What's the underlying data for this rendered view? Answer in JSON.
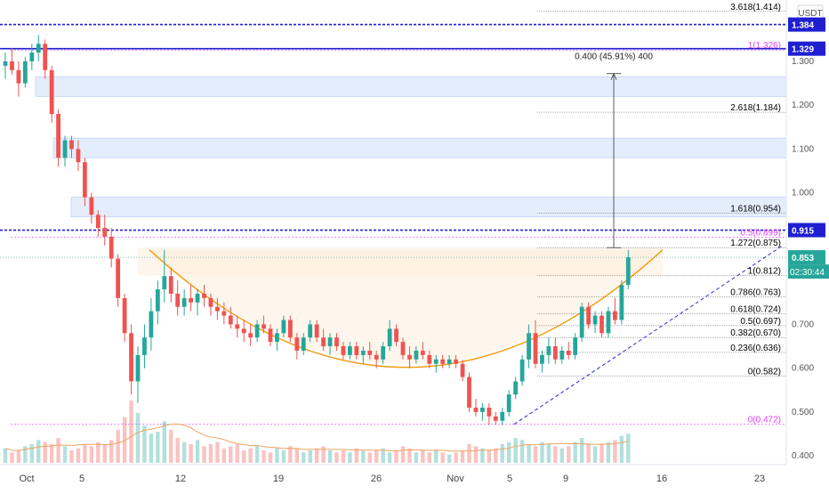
{
  "chart_data": {
    "type": "candlestick",
    "currency_label": "USDT",
    "x_ticks": [
      "Oct",
      "5",
      "12",
      "19",
      "26",
      "Nov",
      "5",
      "9",
      "16",
      "23"
    ],
    "y_ticks": [
      "1.300",
      "1.200",
      "1.100",
      "1.000",
      "0.700",
      "0.600",
      "0.500",
      "0.400"
    ],
    "ylim": [
      0.38,
      1.44
    ],
    "price_tags": [
      {
        "label": "1.384",
        "value": 1.384,
        "color": "#1f1fd1"
      },
      {
        "label": "1.329",
        "value": 1.329,
        "color": "#1f1fd1"
      },
      {
        "label": "0.915",
        "value": 0.915,
        "color": "#1f1fd1"
      },
      {
        "label": "0.853",
        "value": 0.853,
        "color": "#26a69a"
      }
    ],
    "countdown": "02:30:44",
    "fib_right": [
      {
        "label": "3.618(1.414)",
        "value": 1.414,
        "color": "#000000"
      },
      {
        "label": "2.618(1.184)",
        "value": 1.184,
        "color": "#000000"
      },
      {
        "label": "1.618(0.954)",
        "value": 0.954,
        "color": "#000000"
      },
      {
        "label": "1.272(0.875)",
        "value": 0.875,
        "color": "#000000"
      },
      {
        "label": "1(0.812)",
        "value": 0.812,
        "color": "#000000"
      },
      {
        "label": "0.786(0.763)",
        "value": 0.763,
        "color": "#000000"
      },
      {
        "label": "0.618(0.724)",
        "value": 0.724,
        "color": "#000000"
      },
      {
        "label": "0.5(0.697)",
        "value": 0.697,
        "color": "#000000"
      },
      {
        "label": "0.382(0.670)",
        "value": 0.67,
        "color": "#000000"
      },
      {
        "label": "0.236(0.636)",
        "value": 0.636,
        "color": "#000000"
      },
      {
        "label": "0(0.582)",
        "value": 0.582,
        "color": "#000000"
      }
    ],
    "fib_left": [
      {
        "label": "1(1.326)",
        "value": 1.326,
        "color": "#e040fb"
      },
      {
        "label": "0.5(0.899)",
        "value": 0.899,
        "color": "#e040fb"
      },
      {
        "label": "0(0.472)",
        "value": 0.472,
        "color": "#e040fb"
      }
    ],
    "measure_label": "0.400 (45.91%) 400",
    "zones": [
      [
        1.22,
        1.265
      ],
      [
        1.08,
        1.125
      ],
      [
        0.945,
        0.99
      ]
    ],
    "candles": [
      {
        "t": 0,
        "o": 1.29,
        "h": 1.32,
        "l": 1.26,
        "c": 1.3
      },
      {
        "t": 1,
        "o": 1.3,
        "h": 1.33,
        "l": 1.27,
        "c": 1.28
      },
      {
        "t": 2,
        "o": 1.28,
        "h": 1.3,
        "l": 1.22,
        "c": 1.25
      },
      {
        "t": 3,
        "o": 1.25,
        "h": 1.31,
        "l": 1.24,
        "c": 1.3
      },
      {
        "t": 4,
        "o": 1.3,
        "h": 1.34,
        "l": 1.28,
        "c": 1.32
      },
      {
        "t": 5,
        "o": 1.32,
        "h": 1.36,
        "l": 1.3,
        "c": 1.34
      },
      {
        "t": 6,
        "o": 1.34,
        "h": 1.35,
        "l": 1.26,
        "c": 1.28
      },
      {
        "t": 7,
        "o": 1.28,
        "h": 1.29,
        "l": 1.16,
        "c": 1.18
      },
      {
        "t": 8,
        "o": 1.18,
        "h": 1.19,
        "l": 1.06,
        "c": 1.08
      },
      {
        "t": 9,
        "o": 1.08,
        "h": 1.13,
        "l": 1.06,
        "c": 1.12
      },
      {
        "t": 10,
        "o": 1.12,
        "h": 1.13,
        "l": 1.08,
        "c": 1.1
      },
      {
        "t": 11,
        "o": 1.1,
        "h": 1.12,
        "l": 1.05,
        "c": 1.07
      },
      {
        "t": 12,
        "o": 1.07,
        "h": 1.08,
        "l": 0.97,
        "c": 0.99
      },
      {
        "t": 13,
        "o": 0.99,
        "h": 1.0,
        "l": 0.93,
        "c": 0.95
      },
      {
        "t": 14,
        "o": 0.95,
        "h": 0.96,
        "l": 0.9,
        "c": 0.92
      },
      {
        "t": 15,
        "o": 0.92,
        "h": 0.95,
        "l": 0.88,
        "c": 0.9
      },
      {
        "t": 16,
        "o": 0.9,
        "h": 0.92,
        "l": 0.83,
        "c": 0.85
      },
      {
        "t": 17,
        "o": 0.85,
        "h": 0.86,
        "l": 0.74,
        "c": 0.76
      },
      {
        "t": 18,
        "o": 0.76,
        "h": 0.77,
        "l": 0.66,
        "c": 0.68
      },
      {
        "t": 19,
        "o": 0.68,
        "h": 0.7,
        "l": 0.54,
        "c": 0.57
      },
      {
        "t": 20,
        "o": 0.57,
        "h": 0.65,
        "l": 0.52,
        "c": 0.63
      },
      {
        "t": 21,
        "o": 0.63,
        "h": 0.7,
        "l": 0.6,
        "c": 0.67
      },
      {
        "t": 22,
        "o": 0.67,
        "h": 0.76,
        "l": 0.64,
        "c": 0.73
      },
      {
        "t": 23,
        "o": 0.73,
        "h": 0.8,
        "l": 0.7,
        "c": 0.78
      },
      {
        "t": 24,
        "o": 0.78,
        "h": 0.87,
        "l": 0.75,
        "c": 0.81
      },
      {
        "t": 25,
        "o": 0.81,
        "h": 0.83,
        "l": 0.75,
        "c": 0.77
      },
      {
        "t": 26,
        "o": 0.77,
        "h": 0.8,
        "l": 0.72,
        "c": 0.74
      },
      {
        "t": 27,
        "o": 0.74,
        "h": 0.78,
        "l": 0.72,
        "c": 0.76
      },
      {
        "t": 28,
        "o": 0.76,
        "h": 0.79,
        "l": 0.73,
        "c": 0.75
      },
      {
        "t": 29,
        "o": 0.75,
        "h": 0.78,
        "l": 0.72,
        "c": 0.77
      },
      {
        "t": 30,
        "o": 0.77,
        "h": 0.79,
        "l": 0.74,
        "c": 0.76
      },
      {
        "t": 31,
        "o": 0.76,
        "h": 0.77,
        "l": 0.72,
        "c": 0.74
      },
      {
        "t": 32,
        "o": 0.74,
        "h": 0.76,
        "l": 0.71,
        "c": 0.73
      },
      {
        "t": 33,
        "o": 0.73,
        "h": 0.75,
        "l": 0.7,
        "c": 0.72
      },
      {
        "t": 34,
        "o": 0.72,
        "h": 0.74,
        "l": 0.69,
        "c": 0.7
      },
      {
        "t": 35,
        "o": 0.7,
        "h": 0.72,
        "l": 0.67,
        "c": 0.69
      },
      {
        "t": 36,
        "o": 0.69,
        "h": 0.71,
        "l": 0.66,
        "c": 0.68
      },
      {
        "t": 37,
        "o": 0.68,
        "h": 0.7,
        "l": 0.65,
        "c": 0.67
      },
      {
        "t": 38,
        "o": 0.67,
        "h": 0.71,
        "l": 0.66,
        "c": 0.7
      },
      {
        "t": 39,
        "o": 0.7,
        "h": 0.72,
        "l": 0.68,
        "c": 0.69
      },
      {
        "t": 40,
        "o": 0.69,
        "h": 0.7,
        "l": 0.65,
        "c": 0.66
      },
      {
        "t": 41,
        "o": 0.66,
        "h": 0.69,
        "l": 0.64,
        "c": 0.68
      },
      {
        "t": 42,
        "o": 0.68,
        "h": 0.72,
        "l": 0.67,
        "c": 0.71
      },
      {
        "t": 43,
        "o": 0.71,
        "h": 0.72,
        "l": 0.66,
        "c": 0.67
      },
      {
        "t": 44,
        "o": 0.67,
        "h": 0.68,
        "l": 0.62,
        "c": 0.64
      },
      {
        "t": 45,
        "o": 0.64,
        "h": 0.68,
        "l": 0.63,
        "c": 0.67
      },
      {
        "t": 46,
        "o": 0.67,
        "h": 0.71,
        "l": 0.66,
        "c": 0.7
      },
      {
        "t": 47,
        "o": 0.7,
        "h": 0.71,
        "l": 0.66,
        "c": 0.67
      },
      {
        "t": 48,
        "o": 0.67,
        "h": 0.69,
        "l": 0.64,
        "c": 0.65
      },
      {
        "t": 49,
        "o": 0.65,
        "h": 0.68,
        "l": 0.63,
        "c": 0.67
      },
      {
        "t": 50,
        "o": 0.67,
        "h": 0.68,
        "l": 0.64,
        "c": 0.65
      },
      {
        "t": 51,
        "o": 0.65,
        "h": 0.66,
        "l": 0.62,
        "c": 0.63
      },
      {
        "t": 52,
        "o": 0.63,
        "h": 0.66,
        "l": 0.62,
        "c": 0.65
      },
      {
        "t": 53,
        "o": 0.65,
        "h": 0.66,
        "l": 0.62,
        "c": 0.63
      },
      {
        "t": 54,
        "o": 0.63,
        "h": 0.65,
        "l": 0.61,
        "c": 0.64
      },
      {
        "t": 55,
        "o": 0.64,
        "h": 0.66,
        "l": 0.62,
        "c": 0.63
      },
      {
        "t": 56,
        "o": 0.63,
        "h": 0.64,
        "l": 0.6,
        "c": 0.62
      },
      {
        "t": 57,
        "o": 0.62,
        "h": 0.66,
        "l": 0.61,
        "c": 0.65
      },
      {
        "t": 58,
        "o": 0.65,
        "h": 0.71,
        "l": 0.64,
        "c": 0.69
      },
      {
        "t": 59,
        "o": 0.69,
        "h": 0.7,
        "l": 0.65,
        "c": 0.66
      },
      {
        "t": 60,
        "o": 0.66,
        "h": 0.67,
        "l": 0.62,
        "c": 0.63
      },
      {
        "t": 61,
        "o": 0.63,
        "h": 0.65,
        "l": 0.6,
        "c": 0.62
      },
      {
        "t": 62,
        "o": 0.62,
        "h": 0.65,
        "l": 0.61,
        "c": 0.64
      },
      {
        "t": 63,
        "o": 0.64,
        "h": 0.66,
        "l": 0.62,
        "c": 0.63
      },
      {
        "t": 64,
        "o": 0.63,
        "h": 0.64,
        "l": 0.6,
        "c": 0.61
      },
      {
        "t": 65,
        "o": 0.61,
        "h": 0.63,
        "l": 0.59,
        "c": 0.62
      },
      {
        "t": 66,
        "o": 0.62,
        "h": 0.63,
        "l": 0.6,
        "c": 0.61
      },
      {
        "t": 67,
        "o": 0.61,
        "h": 0.63,
        "l": 0.6,
        "c": 0.62
      },
      {
        "t": 68,
        "o": 0.62,
        "h": 0.63,
        "l": 0.6,
        "c": 0.61
      },
      {
        "t": 69,
        "o": 0.61,
        "h": 0.62,
        "l": 0.57,
        "c": 0.58
      },
      {
        "t": 70,
        "o": 0.58,
        "h": 0.59,
        "l": 0.5,
        "c": 0.51
      },
      {
        "t": 71,
        "o": 0.51,
        "h": 0.53,
        "l": 0.49,
        "c": 0.5
      },
      {
        "t": 72,
        "o": 0.5,
        "h": 0.52,
        "l": 0.48,
        "c": 0.51
      },
      {
        "t": 73,
        "o": 0.51,
        "h": 0.52,
        "l": 0.47,
        "c": 0.49
      },
      {
        "t": 74,
        "o": 0.49,
        "h": 0.5,
        "l": 0.47,
        "c": 0.48
      },
      {
        "t": 75,
        "o": 0.48,
        "h": 0.51,
        "l": 0.47,
        "c": 0.5
      },
      {
        "t": 76,
        "o": 0.5,
        "h": 0.55,
        "l": 0.49,
        "c": 0.54
      },
      {
        "t": 77,
        "o": 0.54,
        "h": 0.58,
        "l": 0.53,
        "c": 0.57
      },
      {
        "t": 78,
        "o": 0.57,
        "h": 0.63,
        "l": 0.56,
        "c": 0.62
      },
      {
        "t": 79,
        "o": 0.62,
        "h": 0.7,
        "l": 0.6,
        "c": 0.68
      },
      {
        "t": 80,
        "o": 0.68,
        "h": 0.71,
        "l": 0.6,
        "c": 0.61
      },
      {
        "t": 81,
        "o": 0.61,
        "h": 0.64,
        "l": 0.59,
        "c": 0.63
      },
      {
        "t": 82,
        "o": 0.63,
        "h": 0.67,
        "l": 0.61,
        "c": 0.65
      },
      {
        "t": 83,
        "o": 0.65,
        "h": 0.67,
        "l": 0.61,
        "c": 0.62
      },
      {
        "t": 84,
        "o": 0.62,
        "h": 0.65,
        "l": 0.61,
        "c": 0.64
      },
      {
        "t": 85,
        "o": 0.64,
        "h": 0.66,
        "l": 0.62,
        "c": 0.63
      },
      {
        "t": 86,
        "o": 0.63,
        "h": 0.68,
        "l": 0.62,
        "c": 0.67
      },
      {
        "t": 87,
        "o": 0.67,
        "h": 0.75,
        "l": 0.66,
        "c": 0.74
      },
      {
        "t": 88,
        "o": 0.74,
        "h": 0.75,
        "l": 0.69,
        "c": 0.7
      },
      {
        "t": 89,
        "o": 0.7,
        "h": 0.73,
        "l": 0.68,
        "c": 0.72
      },
      {
        "t": 90,
        "o": 0.72,
        "h": 0.73,
        "l": 0.67,
        "c": 0.68
      },
      {
        "t": 91,
        "o": 0.68,
        "h": 0.74,
        "l": 0.67,
        "c": 0.73
      },
      {
        "t": 92,
        "o": 0.73,
        "h": 0.76,
        "l": 0.7,
        "c": 0.71
      },
      {
        "t": 93,
        "o": 0.71,
        "h": 0.8,
        "l": 0.7,
        "c": 0.79
      },
      {
        "t": 94,
        "o": 0.79,
        "h": 0.87,
        "l": 0.78,
        "c": 0.853
      }
    ],
    "volumes": [
      7,
      5,
      6,
      8,
      9,
      11,
      10,
      9,
      12,
      8,
      6,
      7,
      9,
      8,
      10,
      9,
      11,
      16,
      22,
      30,
      24,
      18,
      14,
      15,
      20,
      16,
      12,
      10,
      9,
      11,
      8,
      9,
      10,
      7,
      8,
      9,
      6,
      7,
      8,
      6,
      5,
      7,
      6,
      8,
      7,
      5,
      6,
      7,
      8,
      6,
      5,
      6,
      5,
      7,
      6,
      5,
      6,
      7,
      5,
      6,
      8,
      7,
      5,
      6,
      5,
      6,
      5,
      4,
      5,
      6,
      9,
      8,
      7,
      6,
      7,
      9,
      10,
      12,
      11,
      9,
      8,
      10,
      9,
      8,
      7,
      8,
      10,
      12,
      9,
      8,
      9,
      10,
      11,
      13,
      14
    ],
    "bullish_color": "#26a69a",
    "bearish_color": "#ef5350"
  }
}
